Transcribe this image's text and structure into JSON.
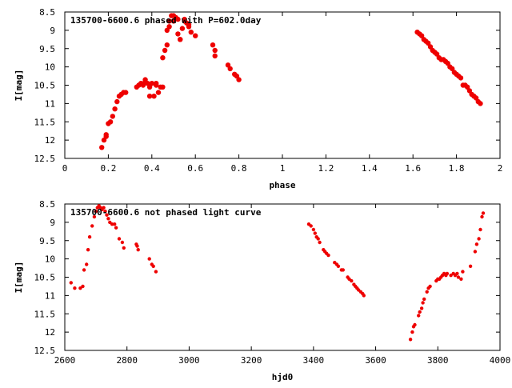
{
  "colors": {
    "points": "#ee0000",
    "frame": "#000000",
    "background": "#ffffff"
  },
  "chart_data": [
    {
      "type": "scatter",
      "title": "135700-6600.6 phased with P=602.0day",
      "xlabel": "phase",
      "ylabel": "I[mag]",
      "xlim": [
        0,
        2
      ],
      "ylim": [
        12.5,
        8.5
      ],
      "y_inverted": true,
      "grid": false,
      "legend": "none",
      "xticks": [
        "0",
        "0.2",
        "0.4",
        "0.6",
        "0.8",
        "1",
        "1.2",
        "1.4",
        "1.6",
        "1.8",
        "2"
      ],
      "xtick_values": [
        0,
        0.2,
        0.4,
        0.6,
        0.8,
        1.0,
        1.2,
        1.4,
        1.6,
        1.8,
        2.0
      ],
      "yticks": [
        "8.5",
        "9",
        "9.5",
        "10",
        "10.5",
        "11",
        "11.5",
        "12",
        "12.5"
      ],
      "ytick_values": [
        8.5,
        9,
        9.5,
        10,
        10.5,
        11,
        11.5,
        12,
        12.5
      ],
      "x": [
        0.17,
        0.18,
        0.19,
        0.19,
        0.2,
        0.21,
        0.22,
        0.23,
        0.24,
        0.25,
        0.26,
        0.27,
        0.28,
        0.33,
        0.34,
        0.35,
        0.36,
        0.37,
        0.37,
        0.38,
        0.39,
        0.39,
        0.4,
        0.41,
        0.42,
        0.42,
        0.43,
        0.44,
        0.45,
        0.45,
        0.46,
        0.47,
        0.47,
        0.48,
        0.48,
        0.49,
        0.5,
        0.5,
        0.51,
        0.52,
        0.52,
        0.53,
        0.53,
        0.54,
        0.55,
        0.55,
        0.56,
        0.57,
        0.57,
        0.58,
        0.6,
        0.68,
        0.69,
        0.69,
        0.75,
        0.76,
        0.78,
        0.79,
        0.8,
        1.62,
        1.63,
        1.64,
        1.65,
        1.66,
        1.67,
        1.68,
        1.69,
        1.7,
        1.71,
        1.72,
        1.73,
        1.74,
        1.75,
        1.76,
        1.77,
        1.78,
        1.79,
        1.8,
        1.81,
        1.82,
        1.83,
        1.84,
        1.85,
        1.86,
        1.87,
        1.88,
        1.89,
        1.9,
        1.91
      ],
      "y": [
        12.2,
        12.0,
        11.9,
        11.85,
        11.55,
        11.5,
        11.35,
        11.15,
        10.95,
        10.8,
        10.75,
        10.7,
        10.7,
        10.55,
        10.5,
        10.45,
        10.5,
        10.4,
        10.35,
        10.45,
        10.8,
        10.55,
        10.45,
        10.8,
        10.45,
        10.5,
        10.7,
        10.55,
        10.55,
        9.75,
        9.55,
        9.4,
        9.0,
        8.9,
        8.75,
        8.6,
        8.6,
        8.75,
        8.65,
        8.7,
        9.1,
        9.25,
        9.25,
        8.95,
        8.75,
        8.7,
        8.8,
        8.85,
        8.9,
        9.05,
        9.15,
        9.4,
        9.55,
        9.7,
        9.95,
        10.05,
        10.2,
        10.25,
        10.35,
        9.05,
        9.1,
        9.15,
        9.25,
        9.3,
        9.35,
        9.45,
        9.55,
        9.6,
        9.65,
        9.75,
        9.8,
        9.8,
        9.85,
        9.9,
        10.0,
        10.05,
        10.15,
        10.2,
        10.25,
        10.3,
        10.5,
        10.5,
        10.55,
        10.65,
        10.75,
        10.8,
        10.85,
        10.95,
        11.0
      ]
    },
    {
      "type": "scatter",
      "title": "135700-6600.6 not phased light curve",
      "xlabel": "hjd0",
      "ylabel": "I[mag]",
      "xlim": [
        2600,
        4000
      ],
      "ylim": [
        12.5,
        8.5
      ],
      "y_inverted": true,
      "grid": false,
      "legend": "none",
      "xticks": [
        "2600",
        "2800",
        "3000",
        "3200",
        "3400",
        "3600",
        "3800",
        "4000"
      ],
      "xtick_values": [
        2600,
        2800,
        3000,
        3200,
        3400,
        3600,
        3800,
        4000
      ],
      "yticks": [
        "8.5",
        "9",
        "9.5",
        "10",
        "10.5",
        "11",
        "11.5",
        "12",
        "12.5"
      ],
      "ytick_values": [
        8.5,
        9,
        9.5,
        10,
        10.5,
        11,
        11.5,
        12,
        12.5
      ],
      "x": [
        2620,
        2632,
        2650,
        2658,
        2662,
        2670,
        2675,
        2680,
        2688,
        2695,
        2700,
        2705,
        2710,
        2715,
        2720,
        2725,
        2730,
        2735,
        2740,
        2745,
        2752,
        2760,
        2765,
        2775,
        2785,
        2790,
        2830,
        2833,
        2836,
        2872,
        2880,
        2885,
        2893,
        3385,
        3392,
        3400,
        3405,
        3410,
        3415,
        3420,
        3432,
        3437,
        3442,
        3448,
        3468,
        3475,
        3480,
        3490,
        3495,
        3510,
        3515,
        3522,
        3530,
        3535,
        3540,
        3545,
        3552,
        3558,
        3562,
        3712,
        3718,
        3722,
        3726,
        3738,
        3742,
        3748,
        3752,
        3756,
        3765,
        3770,
        3775,
        3795,
        3800,
        3805,
        3810,
        3815,
        3820,
        3826,
        3830,
        3842,
        3850,
        3856,
        3862,
        3866,
        3875,
        3880,
        3905,
        3920,
        3925,
        3932,
        3937,
        3942,
        3946
      ],
      "y": [
        10.65,
        10.8,
        10.8,
        10.75,
        10.3,
        10.15,
        9.75,
        9.4,
        9.1,
        8.85,
        8.7,
        8.6,
        8.55,
        8.6,
        8.65,
        8.6,
        8.7,
        8.8,
        8.9,
        9.0,
        9.05,
        9.05,
        9.15,
        9.45,
        9.55,
        9.7,
        9.6,
        9.65,
        9.75,
        10.0,
        10.15,
        10.2,
        10.35,
        9.05,
        9.1,
        9.2,
        9.3,
        9.4,
        9.45,
        9.55,
        9.75,
        9.8,
        9.85,
        9.9,
        10.1,
        10.15,
        10.2,
        10.3,
        10.3,
        10.5,
        10.55,
        10.6,
        10.7,
        10.75,
        10.8,
        10.85,
        10.9,
        10.95,
        11.0,
        12.2,
        12.0,
        11.85,
        11.8,
        11.55,
        11.45,
        11.35,
        11.2,
        11.1,
        10.9,
        10.8,
        10.75,
        10.6,
        10.55,
        10.55,
        10.5,
        10.45,
        10.4,
        10.45,
        10.4,
        10.45,
        10.4,
        10.45,
        10.4,
        10.5,
        10.55,
        10.35,
        10.2,
        9.8,
        9.6,
        9.45,
        9.2,
        8.85,
        8.75
      ]
    }
  ]
}
